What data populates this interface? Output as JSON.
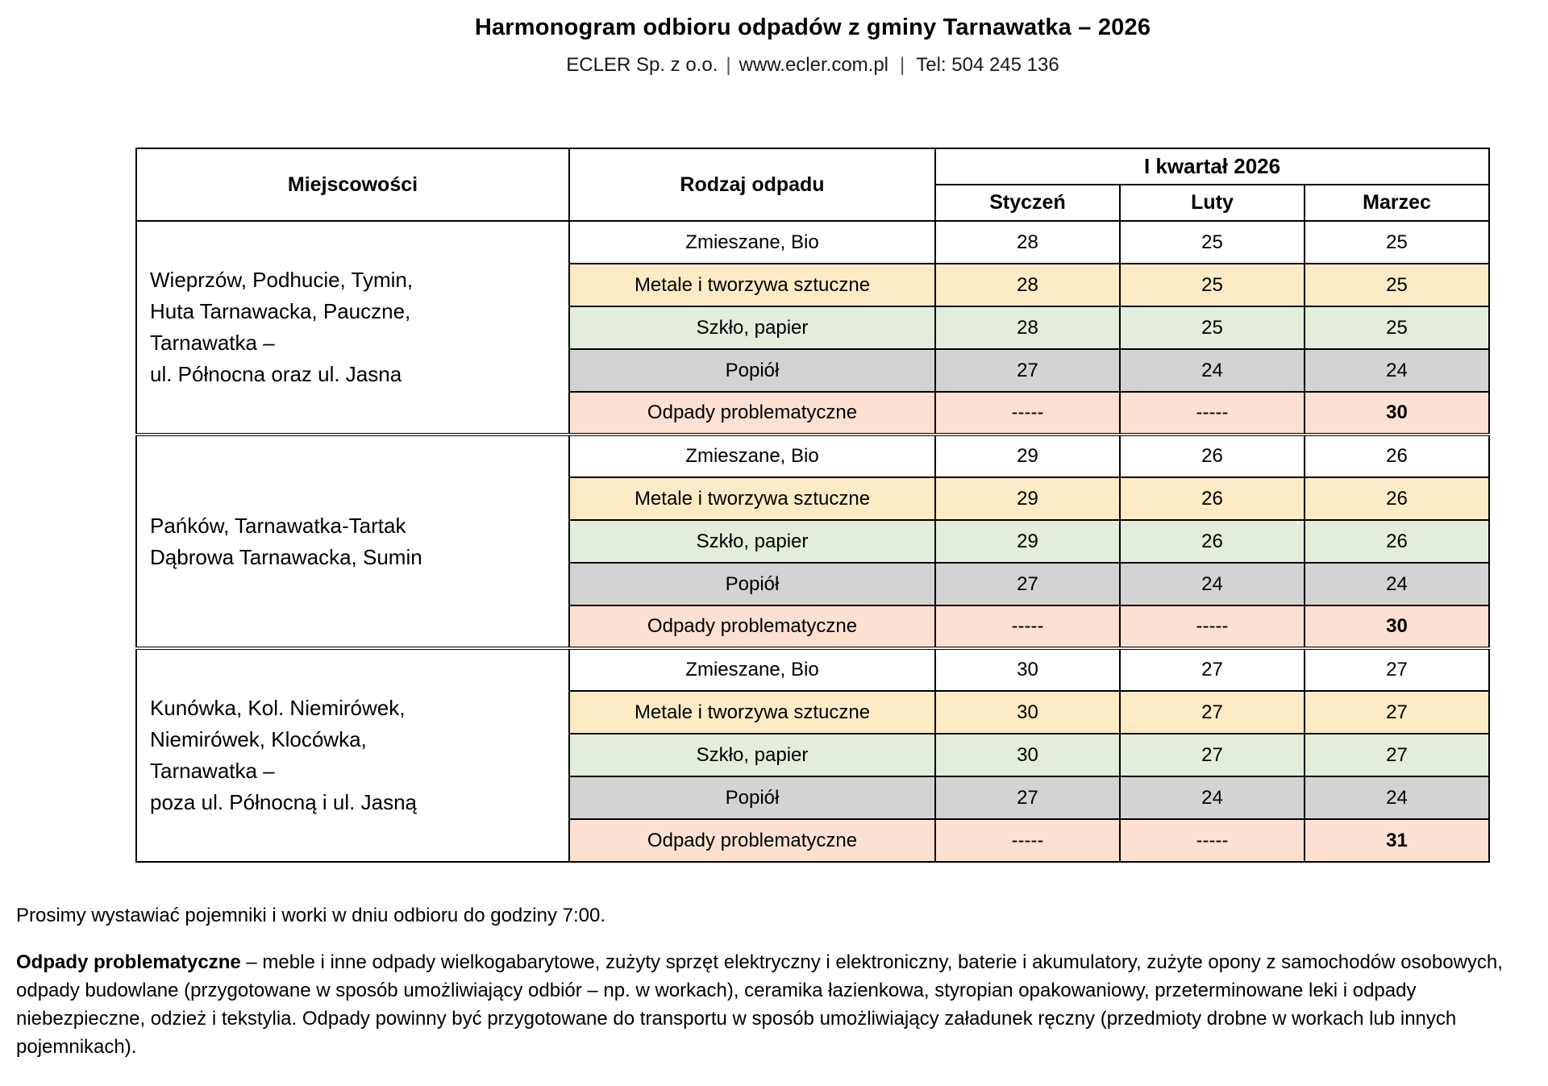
{
  "header": {
    "title": "Harmonogram odbioru odpadów z gminy Tarnawatka – 2026",
    "company": "ECLER Sp. z o.o.",
    "website": "www.ecler.com.pl",
    "phone": "Tel: 504 245 136",
    "separator": "|"
  },
  "table": {
    "col_miejscowosci": "Miejscowości",
    "col_rodzaj": "Rodzaj odpadu",
    "col_kwartal": "I kwartał 2026",
    "months": [
      "Styczeń",
      "Luty",
      "Marzec"
    ],
    "row_colors": {
      "zmieszane_bio": "#FFFFFF",
      "metale_tworzywa": "#FCEBC5",
      "szklo_papier": "#E2EEDB",
      "popiol": "#D3D3D3",
      "odpady_problematyczne": "#FCE1D2"
    },
    "groups": [
      {
        "locality_lines": [
          "Wieprzów, Podhucie, Tymin,",
          "Huta Tarnawacka, Pauczne,",
          "Tarnawatka –",
          "ul. Północna oraz ul. Jasna"
        ],
        "rows": [
          {
            "type": "Zmieszane, Bio",
            "values": [
              "28",
              "25",
              "25"
            ]
          },
          {
            "type": "Metale i tworzywa sztuczne",
            "values": [
              "28",
              "25",
              "25"
            ]
          },
          {
            "type": "Szkło, papier",
            "values": [
              "28",
              "25",
              "25"
            ]
          },
          {
            "type": "Popiół",
            "values": [
              "27",
              "24",
              "24"
            ]
          },
          {
            "type": "Odpady problematyczne",
            "values": [
              "-----",
              "-----",
              "30"
            ]
          }
        ]
      },
      {
        "locality_lines": [
          "Pańków, Tarnawatka-Tartak",
          "Dąbrowa Tarnawacka, Sumin"
        ],
        "rows": [
          {
            "type": "Zmieszane, Bio",
            "values": [
              "29",
              "26",
              "26"
            ]
          },
          {
            "type": "Metale i tworzywa sztuczne",
            "values": [
              "29",
              "26",
              "26"
            ]
          },
          {
            "type": "Szkło, papier",
            "values": [
              "29",
              "26",
              "26"
            ]
          },
          {
            "type": "Popiół",
            "values": [
              "27",
              "24",
              "24"
            ]
          },
          {
            "type": "Odpady problematyczne",
            "values": [
              "-----",
              "-----",
              "30"
            ]
          }
        ]
      },
      {
        "locality_lines": [
          "Kunówka, Kol. Niemirówek,",
          "Niemirówek, Klocówka,",
          "Tarnawatka –",
          "poza ul. Północną i ul. Jasną"
        ],
        "rows": [
          {
            "type": "Zmieszane, Bio",
            "values": [
              "30",
              "27",
              "27"
            ]
          },
          {
            "type": "Metale i tworzywa sztuczne",
            "values": [
              "30",
              "27",
              "27"
            ]
          },
          {
            "type": "Szkło, papier",
            "values": [
              "30",
              "27",
              "27"
            ]
          },
          {
            "type": "Popiół",
            "values": [
              "27",
              "24",
              "24"
            ]
          },
          {
            "type": "Odpady problematyczne",
            "values": [
              "-----",
              "-----",
              "31"
            ]
          }
        ]
      }
    ]
  },
  "footer": {
    "note": "Prosimy wystawiać pojemniki i worki w dniu odbioru do godziny 7:00.",
    "problematic_label": "Odpady problematyczne",
    "problematic_text": " – meble i inne odpady wielkogabarytowe, zużyty sprzęt elektryczny i elektroniczny, baterie i akumulatory, zużyte opony z samochodów osobowych, odpady budowlane (przygotowane w sposób umożliwiający odbiór – np. w workach), ceramika łazienkowa, styropian opakowaniowy, przeterminowane leki i odpady niebezpieczne,  odzież i tekstylia. Odpady powinny być przygotowane do transportu w sposób umożliwiający załadunek ręczny (przedmioty drobne w workach lub innych pojemnikach)."
  }
}
